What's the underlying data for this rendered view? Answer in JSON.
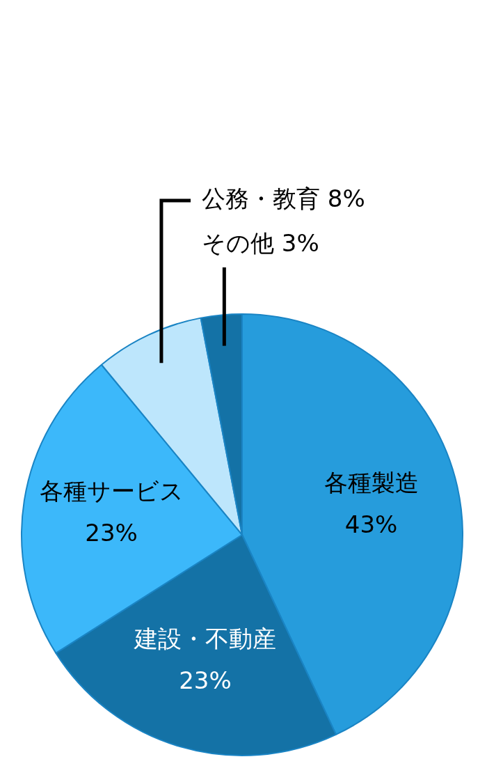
{
  "chart_data": {
    "type": "pie",
    "categories": [
      "各種製造",
      "建設・不動産",
      "各種サービス",
      "公務・教育",
      "その他"
    ],
    "values": [
      43,
      23,
      23,
      8,
      3
    ],
    "value_labels": [
      "43%",
      "23%",
      "23%",
      "8%",
      "3%"
    ],
    "colors": [
      "#269cdc",
      "#1472a6",
      "#3cb8fa",
      "#bde6fc",
      "#1472a6"
    ],
    "legend": false
  }
}
